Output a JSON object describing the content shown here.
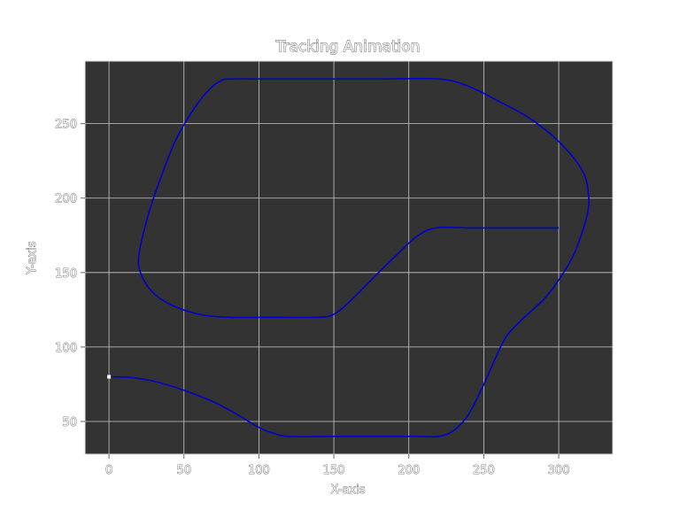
{
  "chart_data": {
    "type": "line",
    "title": "Tracking Animation",
    "xlabel": "X-axis",
    "ylabel": "Y-axis",
    "xlim": [
      -16,
      336
    ],
    "ylim": [
      28,
      292
    ],
    "xticks": [
      0,
      50,
      100,
      150,
      200,
      250,
      300
    ],
    "yticks": [
      50,
      100,
      150,
      200,
      250
    ],
    "grid": true,
    "colors": {
      "plot_background": "#333333",
      "grid": "#c8c8c8",
      "line": "#0000cc",
      "marker": "#ffffff"
    },
    "series": [
      {
        "points": [
          [
            0,
            80
          ],
          [
            15,
            79.5
          ],
          [
            30,
            77
          ],
          [
            50,
            71
          ],
          [
            70,
            63
          ],
          [
            85,
            55
          ],
          [
            100,
            46
          ],
          [
            110,
            42
          ],
          [
            120,
            40
          ],
          [
            150,
            40
          ],
          [
            180,
            40
          ],
          [
            205,
            40
          ],
          [
            220,
            40
          ],
          [
            230,
            44
          ],
          [
            240,
            55
          ],
          [
            250,
            75
          ],
          [
            258,
            93
          ],
          [
            265,
            107
          ],
          [
            275,
            118
          ],
          [
            290,
            132
          ],
          [
            300,
            145
          ],
          [
            310,
            162
          ],
          [
            318,
            185
          ],
          [
            320,
            200
          ],
          [
            316,
            218
          ],
          [
            300,
            238
          ],
          [
            280,
            254
          ],
          [
            260,
            265
          ],
          [
            240,
            275
          ],
          [
            220,
            280
          ],
          [
            180,
            280
          ],
          [
            140,
            280
          ],
          [
            100,
            280
          ],
          [
            80,
            280
          ],
          [
            75,
            279
          ],
          [
            68,
            274
          ],
          [
            58,
            262
          ],
          [
            45,
            240
          ],
          [
            35,
            215
          ],
          [
            26,
            188
          ],
          [
            20,
            162
          ],
          [
            21,
            150
          ],
          [
            28,
            138
          ],
          [
            40,
            129
          ],
          [
            60,
            122
          ],
          [
            80,
            120
          ],
          [
            110,
            120
          ],
          [
            140,
            120
          ],
          [
            150,
            122
          ],
          [
            160,
            130
          ],
          [
            175,
            145
          ],
          [
            190,
            160
          ],
          [
            205,
            174
          ],
          [
            218,
            180
          ],
          [
            240,
            180
          ],
          [
            270,
            180
          ],
          [
            300,
            180
          ]
        ]
      }
    ],
    "marker": {
      "x": 0,
      "y": 80
    }
  }
}
